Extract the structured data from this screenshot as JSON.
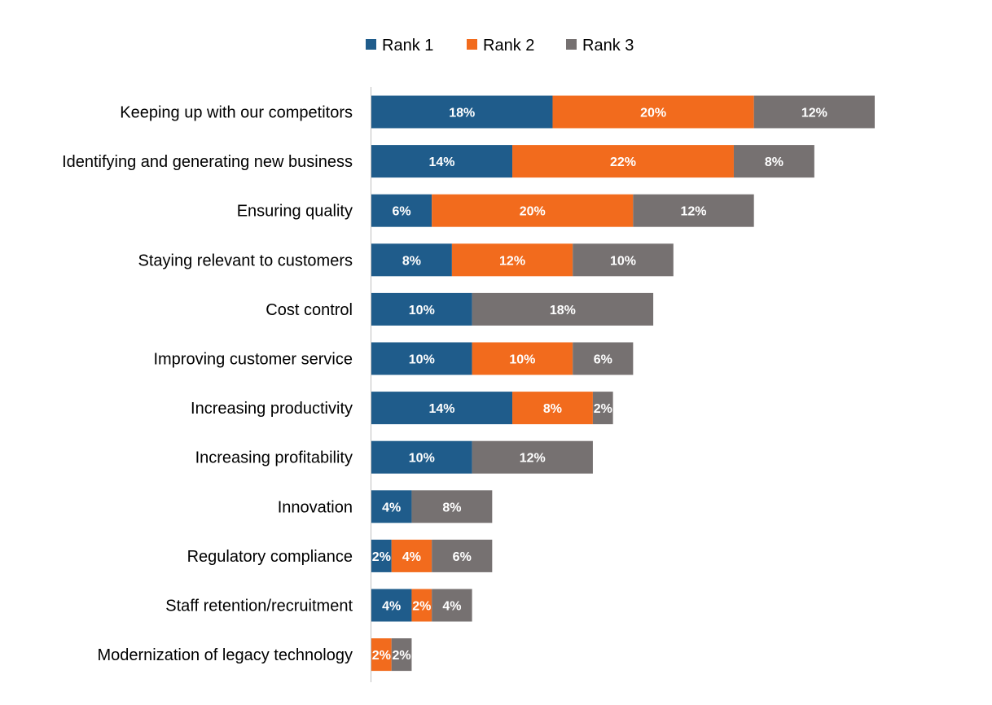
{
  "chart_data": {
    "type": "bar",
    "orientation": "horizontal",
    "stacked": true,
    "categories": [
      "Keeping up with our competitors",
      "Identifying and generating new business",
      "Ensuring quality",
      "Staying relevant to customers",
      "Cost control",
      "Improving customer service",
      "Increasing productivity",
      "Increasing profitability",
      "Innovation",
      "Regulatory compliance",
      "Staff retention/recruitment",
      "Modernization of legacy technology"
    ],
    "series": [
      {
        "name": "Rank 1",
        "color": "#1f5c8b",
        "values": [
          18,
          14,
          6,
          8,
          10,
          10,
          14,
          10,
          4,
          2,
          4,
          0
        ]
      },
      {
        "name": "Rank 2",
        "color": "#f26b1d",
        "values": [
          20,
          22,
          20,
          12,
          0,
          10,
          8,
          0,
          0,
          4,
          2,
          2
        ]
      },
      {
        "name": "Rank 3",
        "color": "#767171",
        "values": [
          12,
          8,
          12,
          10,
          18,
          6,
          2,
          12,
          8,
          6,
          4,
          2
        ]
      }
    ],
    "value_suffix": "%",
    "legend_position": "top",
    "grid": false,
    "xlim": [
      0,
      50
    ]
  }
}
